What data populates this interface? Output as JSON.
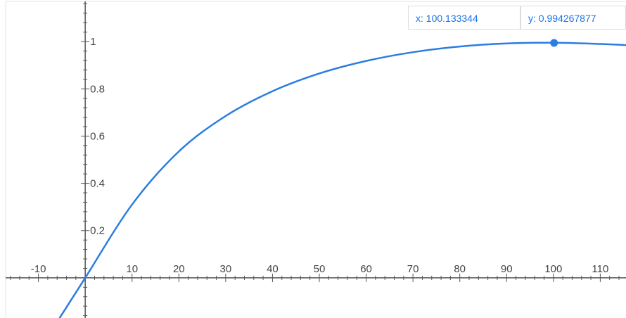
{
  "readout": {
    "x_text": "x: 100.133344",
    "y_text": "y: 0.994267877"
  },
  "colors": {
    "curve": "#2a7de1",
    "axis": "#555555",
    "frame": "#e3e3e3",
    "tick_label": "#444444",
    "readout_text": "#1a73e8"
  },
  "chart_data": {
    "type": "line",
    "title": "",
    "xlabel": "",
    "ylabel": "",
    "xlim": [
      -17,
      115.5
    ],
    "ylim": [
      -0.17,
      1.17
    ],
    "grid": false,
    "legend": "none",
    "x_ticks": [
      "-10",
      "10",
      "20",
      "30",
      "40",
      "50",
      "60",
      "70",
      "80",
      "90",
      "100",
      "110"
    ],
    "y_ticks": [
      "0.2",
      "0.4",
      "0.6",
      "0.8",
      "1"
    ],
    "series": [
      {
        "x": [
          -5.5,
          0,
          10,
          20,
          30,
          40,
          50,
          60,
          70,
          80,
          90,
          100,
          110,
          115.5
        ],
        "y": [
          -0.171,
          0,
          0.31,
          0.535,
          0.685,
          0.79,
          0.865,
          0.918,
          0.955,
          0.979,
          0.992,
          0.995,
          0.99,
          0.985
        ]
      }
    ],
    "highlight_point": {
      "x": 100.133344,
      "y": 0.994267877
    }
  }
}
